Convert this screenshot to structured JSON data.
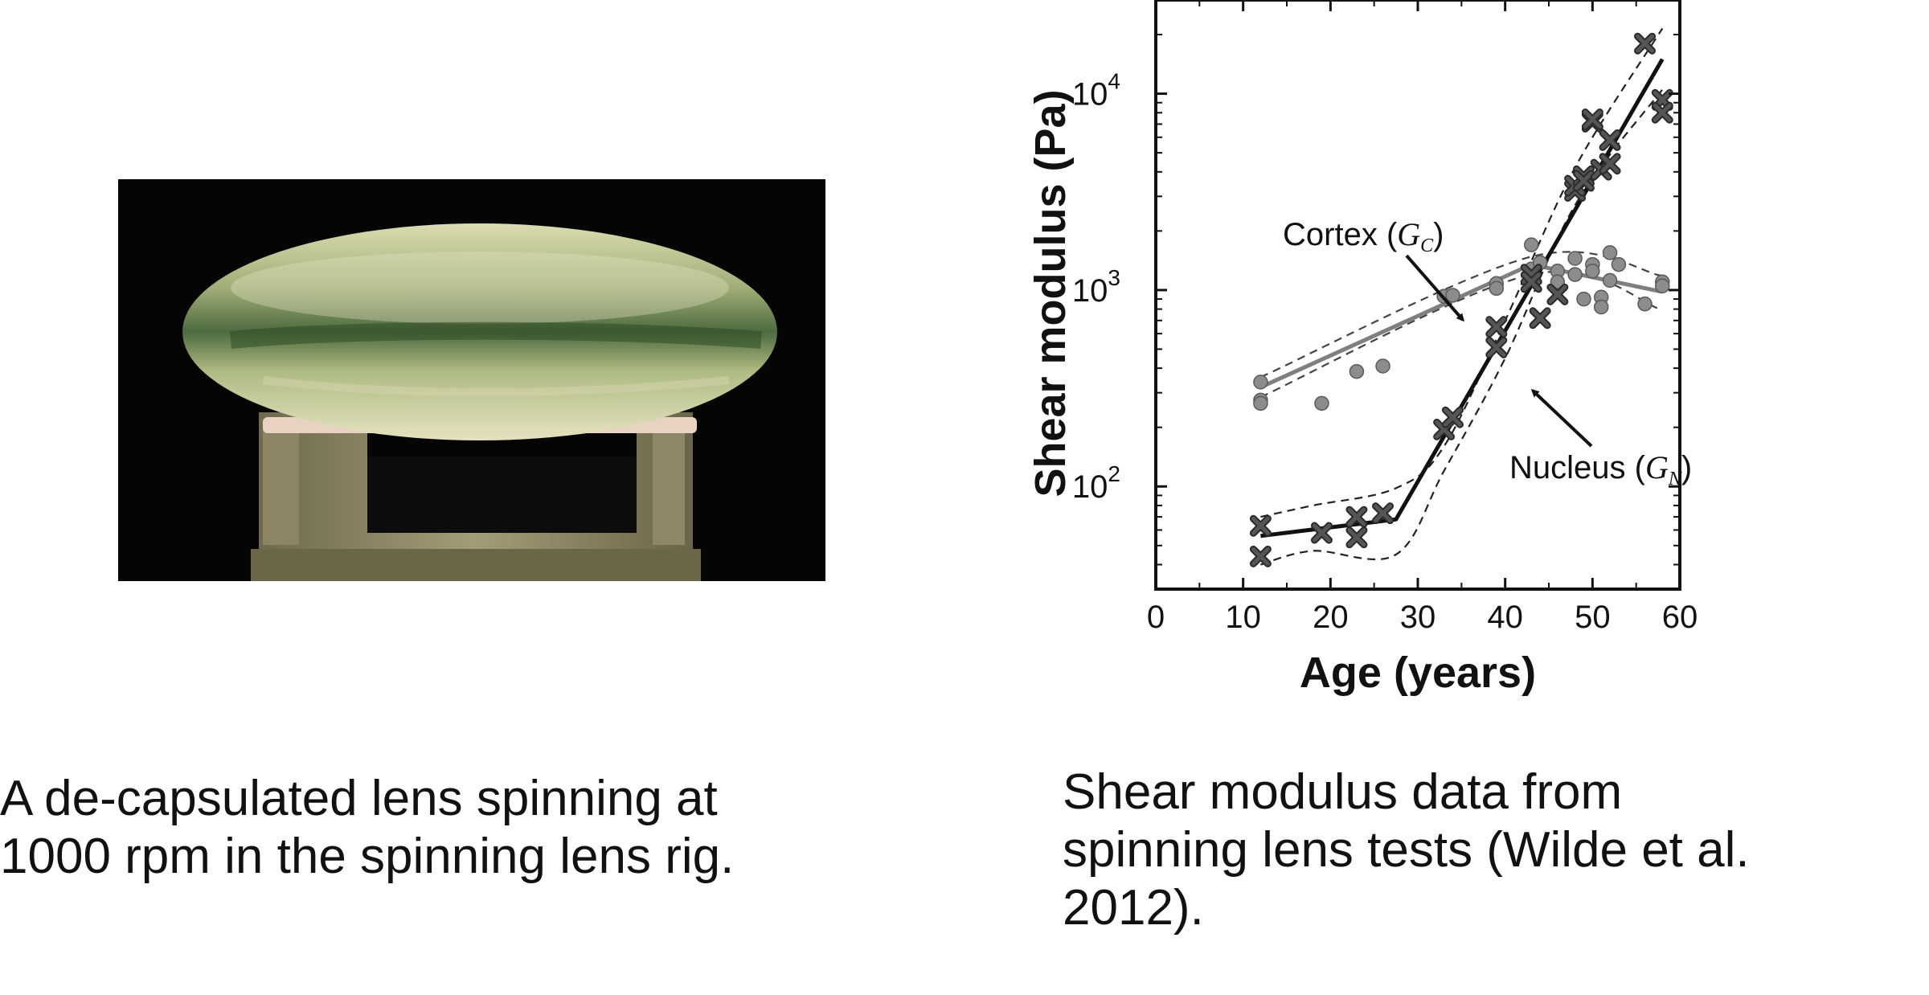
{
  "photo": {
    "caption_line1": "A de-capsulated lens spinning at",
    "caption_line2": "1000 rpm in the spinning lens rig."
  },
  "chart_caption": {
    "line1": "Shear modulus data from",
    "line2": "spinning lens tests (Wilde et al.",
    "line3": "2012)."
  },
  "colors": {
    "nucleus": "#555555",
    "cortex": "#8c8c8c",
    "fit_nucleus": "#111111",
    "fit_cortex": "#7f7f7f"
  },
  "chart_data": {
    "type": "scatter",
    "xlabel": "Age (years)",
    "ylabel": "Shear modulus (Pa)",
    "xlim": [
      0,
      60
    ],
    "ylim": [
      30,
      30000
    ],
    "y_scale": "log",
    "x_ticks": [
      "0",
      "10",
      "20",
      "30",
      "40",
      "50",
      "60"
    ],
    "y_ticks": [
      {
        "base": "10",
        "exp": "2",
        "value": 100
      },
      {
        "base": "10",
        "exp": "3",
        "value": 1000
      },
      {
        "base": "10",
        "exp": "4",
        "value": 10000
      }
    ],
    "series": [
      {
        "label": "Cortex",
        "symbol": "G",
        "subscript": "C",
        "marker": "circle",
        "points": [
          [
            12,
            340
          ],
          [
            12,
            275
          ],
          [
            12,
            265
          ],
          [
            19,
            265
          ],
          [
            23,
            385
          ],
          [
            26,
            410
          ],
          [
            33,
            930
          ],
          [
            34,
            940
          ],
          [
            39,
            1080
          ],
          [
            39,
            1020
          ],
          [
            43,
            1700
          ],
          [
            43,
            1280
          ],
          [
            44,
            1380
          ],
          [
            46,
            1250
          ],
          [
            46,
            1100
          ],
          [
            48,
            1450
          ],
          [
            48,
            1200
          ],
          [
            49,
            900
          ],
          [
            50,
            1350
          ],
          [
            50,
            1250
          ],
          [
            51,
            920
          ],
          [
            51,
            820
          ],
          [
            52,
            1550
          ],
          [
            52,
            1120
          ],
          [
            53,
            1350
          ],
          [
            56,
            850
          ],
          [
            58,
            1100
          ],
          [
            58,
            1050
          ]
        ],
        "fit": [
          [
            12,
            320
          ],
          [
            43,
            1350
          ],
          [
            58,
            980
          ]
        ],
        "band_upper": [
          [
            12,
            360
          ],
          [
            43,
            1480
          ],
          [
            58,
            1180
          ]
        ],
        "band_lower": [
          [
            12,
            285
          ],
          [
            43,
            1200
          ],
          [
            58,
            790
          ]
        ]
      },
      {
        "label": "Nucleus",
        "symbol": "G",
        "subscript": "N",
        "marker": "x",
        "points": [
          [
            12,
            63
          ],
          [
            12,
            44
          ],
          [
            19,
            58
          ],
          [
            23,
            70
          ],
          [
            23,
            55
          ],
          [
            26,
            73
          ],
          [
            33,
            195
          ],
          [
            34,
            225
          ],
          [
            39,
            650
          ],
          [
            39,
            510
          ],
          [
            43,
            1200
          ],
          [
            43,
            1100
          ],
          [
            44,
            720
          ],
          [
            46,
            950
          ],
          [
            48,
            3200
          ],
          [
            48,
            3400
          ],
          [
            49,
            3800
          ],
          [
            49,
            3600
          ],
          [
            50,
            7200
          ],
          [
            50,
            7400
          ],
          [
            51,
            4100
          ],
          [
            52,
            4400
          ],
          [
            52,
            5800
          ],
          [
            56,
            18000
          ],
          [
            58,
            9300
          ],
          [
            58,
            8000
          ]
        ],
        "fit": [
          [
            12,
            56
          ],
          [
            27.5,
            68
          ],
          [
            58,
            15000
          ]
        ],
        "band_upper": [
          [
            12,
            70
          ],
          [
            18,
            80
          ],
          [
            27.5,
            98
          ],
          [
            33,
            160
          ],
          [
            40,
            700
          ],
          [
            48,
            4200
          ],
          [
            58,
            21500
          ]
        ],
        "band_lower": [
          [
            12,
            40
          ],
          [
            18,
            47
          ],
          [
            27.5,
            45
          ],
          [
            33,
            120
          ],
          [
            40,
            450
          ],
          [
            48,
            2700
          ],
          [
            58,
            10500
          ]
        ]
      }
    ]
  }
}
